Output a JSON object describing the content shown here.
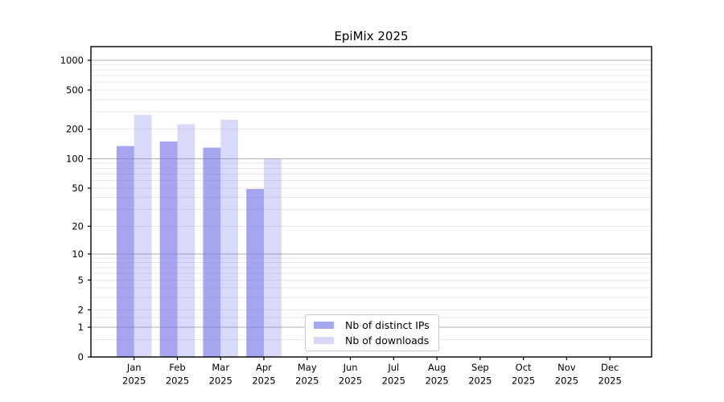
{
  "title": "EpiMix 2025",
  "chart_data": {
    "type": "bar",
    "title": "EpiMix 2025",
    "categories": [
      "Jan 2025",
      "Feb 2025",
      "Mar 2025",
      "Apr 2025",
      "May 2025",
      "Jun 2025",
      "Jul 2025",
      "Aug 2025",
      "Sep 2025",
      "Oct 2025",
      "Nov 2025",
      "Dec 2025"
    ],
    "series": [
      {
        "name": "Nb of distinct IPs",
        "values": [
          135,
          150,
          130,
          49,
          0,
          0,
          0,
          0,
          0,
          0,
          0,
          0
        ],
        "bar_color": "rgba(117,117,232,0.65)",
        "legend_color": "#a7a7ef"
      },
      {
        "name": "Nb of downloads",
        "values": [
          280,
          225,
          250,
          100,
          0,
          0,
          0,
          0,
          0,
          0,
          0,
          0
        ],
        "bar_color": "rgba(117,117,232,0.28)",
        "legend_color": "#d9d9f7"
      }
    ],
    "xlabel": "",
    "ylabel": "",
    "yscale": "log1p",
    "ylim": [
      0,
      1380
    ],
    "yticks": [
      0,
      1,
      2,
      5,
      10,
      20,
      50,
      100,
      200,
      500,
      1000
    ],
    "minor_gridline_values": [
      0.5,
      1.5,
      2,
      3,
      4,
      5,
      6,
      7,
      8,
      9,
      20,
      30,
      40,
      50,
      60,
      70,
      80,
      90,
      200,
      300,
      400,
      500,
      600,
      700,
      800,
      900
    ],
    "major_gridline_values": [
      1,
      10,
      100,
      1000
    ],
    "grid": true,
    "legend_position": "lower center-left inside plot",
    "colors": {
      "major_grid": "#b0b0b0",
      "minor_grid": "#e9e9e9",
      "spine": "#000000",
      "tick_label": "#000000"
    }
  }
}
